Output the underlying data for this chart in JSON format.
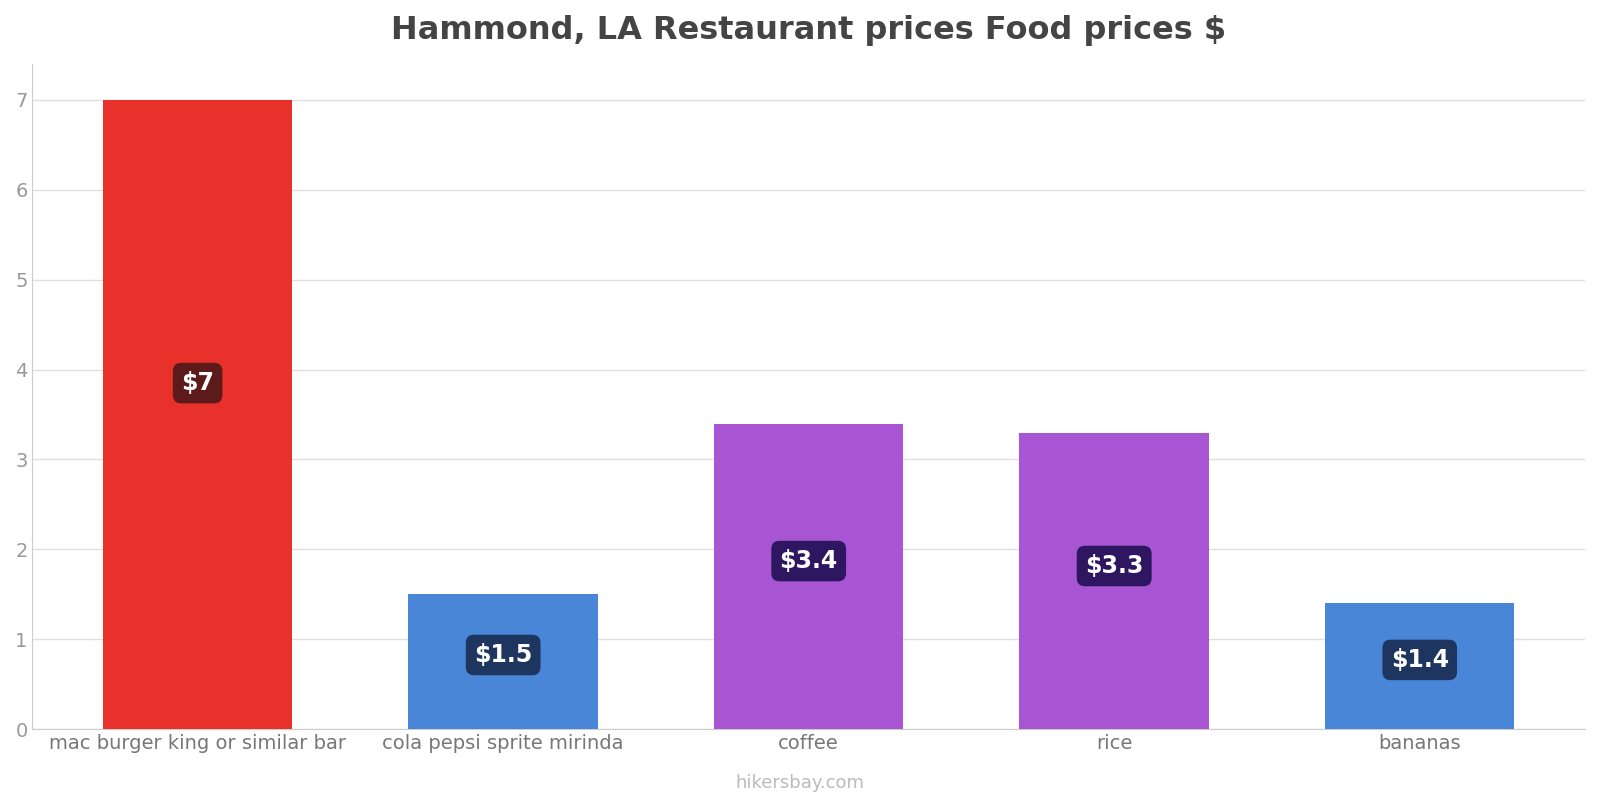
{
  "title": "Hammond, LA Restaurant prices Food prices $",
  "categories": [
    "mac burger king or similar bar",
    "cola pepsi sprite mirinda",
    "coffee",
    "rice",
    "bananas"
  ],
  "values": [
    7.0,
    1.5,
    3.4,
    3.3,
    1.4
  ],
  "bar_colors": [
    "#e8312a",
    "#4a86d8",
    "#a855d4",
    "#a855d4",
    "#4a86d8"
  ],
  "label_texts": [
    "$7",
    "$1.5",
    "$3.4",
    "$3.3",
    "$1.4"
  ],
  "label_box_colors": [
    "#5c1a1a",
    "#1e3560",
    "#2e1760",
    "#2e1760",
    "#1e3560"
  ],
  "ylim": [
    0,
    7.4
  ],
  "yticks": [
    0,
    1,
    2,
    3,
    4,
    5,
    6,
    7
  ],
  "background_color": "#ffffff",
  "grid_color": "#e0e0e0",
  "watermark": "hikersbay.com",
  "title_fontsize": 23,
  "label_fontsize": 17,
  "tick_fontsize": 14,
  "watermark_fontsize": 13,
  "bar_width": 0.62
}
